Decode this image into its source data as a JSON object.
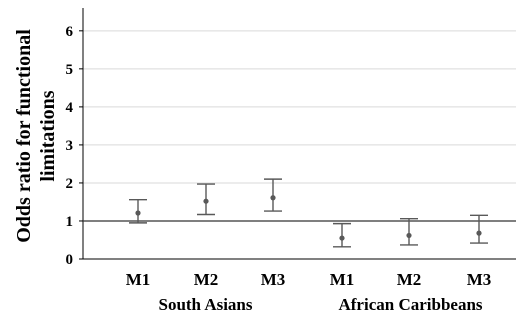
{
  "chart_data": {
    "type": "scatter",
    "subtype": "point-with-error-bars",
    "title": "",
    "ylabel": "Odds ratio for functional limitations",
    "xlabel": "",
    "ylim": [
      0,
      6.6
    ],
    "yticks": [
      0,
      1,
      2,
      3,
      4,
      5,
      6
    ],
    "grid": "horizontal",
    "reference_line": 1,
    "categories": [
      "M1",
      "M2",
      "M3",
      "M1",
      "M2",
      "M3"
    ],
    "groups": [
      {
        "label": "South Asians",
        "span": [
          0,
          2
        ]
      },
      {
        "label": "African Caribbeans",
        "span": [
          3,
          5
        ]
      }
    ],
    "points": [
      {
        "category": "M1",
        "group": "South Asians",
        "value": 1.21,
        "lower": 0.95,
        "upper": 1.56
      },
      {
        "category": "M2",
        "group": "South Asians",
        "value": 1.52,
        "lower": 1.17,
        "upper": 1.97
      },
      {
        "category": "M3",
        "group": "South Asians",
        "value": 1.61,
        "lower": 1.26,
        "upper": 2.1
      },
      {
        "category": "M1",
        "group": "African Caribbeans",
        "value": 0.55,
        "lower": 0.32,
        "upper": 0.93
      },
      {
        "category": "M2",
        "group": "African Caribbeans",
        "value": 0.62,
        "lower": 0.37,
        "upper": 1.06
      },
      {
        "category": "M3",
        "group": "African Caribbeans",
        "value": 0.68,
        "lower": 0.42,
        "upper": 1.15
      }
    ],
    "colors": {
      "grid": "#d9d9d9",
      "axis": "#000000",
      "marks": "#595959",
      "reference": "#333333"
    }
  }
}
